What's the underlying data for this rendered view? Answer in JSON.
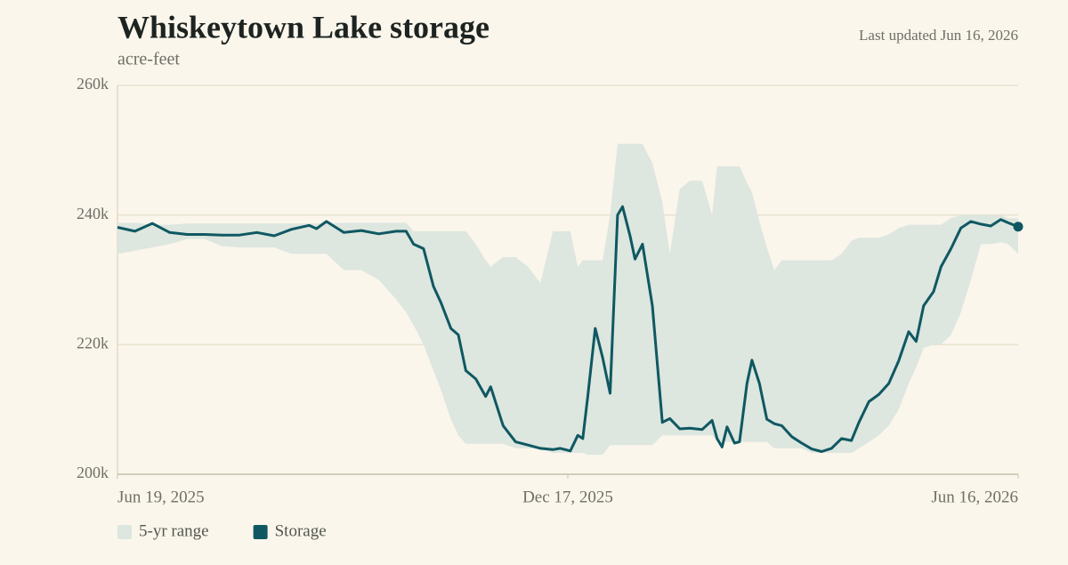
{
  "chart_data": {
    "type": "line",
    "title": "Whiskeytown Lake storage",
    "subtitle": "acre-feet",
    "updated": "Last updated Jun 16, 2026",
    "x": [
      "2025-06-19",
      "2025-06-26",
      "2025-07-03",
      "2025-07-10",
      "2025-07-17",
      "2025-07-24",
      "2025-07-31",
      "2025-08-07",
      "2025-08-14",
      "2025-08-21",
      "2025-08-28",
      "2025-09-04",
      "2025-09-07",
      "2025-09-11",
      "2025-09-18",
      "2025-09-25",
      "2025-10-02",
      "2025-10-09",
      "2025-10-13",
      "2025-10-16",
      "2025-10-20",
      "2025-10-24",
      "2025-10-27",
      "2025-10-31",
      "2025-11-03",
      "2025-11-06",
      "2025-11-10",
      "2025-11-14",
      "2025-11-16",
      "2025-11-21",
      "2025-11-26",
      "2025-12-01",
      "2025-12-06",
      "2025-12-11",
      "2025-12-14",
      "2025-12-18",
      "2025-12-21",
      "2025-12-23",
      "2025-12-25",
      "2025-12-28",
      "2025-12-31",
      "2026-01-03",
      "2026-01-06",
      "2026-01-08",
      "2026-01-11",
      "2026-01-13",
      "2026-01-16",
      "2026-01-20",
      "2026-01-24",
      "2026-01-27",
      "2026-01-31",
      "2026-02-04",
      "2026-02-09",
      "2026-02-13",
      "2026-02-15",
      "2026-02-17",
      "2026-02-19",
      "2026-02-22",
      "2026-02-24",
      "2026-02-27",
      "2026-03-01",
      "2026-03-04",
      "2026-03-07",
      "2026-03-10",
      "2026-03-13",
      "2026-03-17",
      "2026-03-21",
      "2026-03-25",
      "2026-03-29",
      "2026-04-02",
      "2026-04-06",
      "2026-04-10",
      "2026-04-13",
      "2026-04-17",
      "2026-04-21",
      "2026-04-25",
      "2026-04-29",
      "2026-05-03",
      "2026-05-06",
      "2026-05-09",
      "2026-05-13",
      "2026-05-16",
      "2026-05-20",
      "2026-05-24",
      "2026-05-28",
      "2026-06-01",
      "2026-06-05",
      "2026-06-09",
      "2026-06-12",
      "2026-06-16"
    ],
    "xlim": [
      "2025-06-19",
      "2026-06-16"
    ],
    "xticks": [
      {
        "value": "2025-06-19",
        "label": "Jun 19, 2025"
      },
      {
        "value": "2025-12-17",
        "label": "Dec 17, 2025"
      },
      {
        "value": "2026-06-16",
        "label": "Jun 16, 2026"
      }
    ],
    "ylim": [
      200000,
      260000
    ],
    "yticks": [
      {
        "value": 200000,
        "label": "200k"
      },
      {
        "value": 220000,
        "label": "220k"
      },
      {
        "value": 240000,
        "label": "240k"
      },
      {
        "value": 260000,
        "label": "260k"
      }
    ],
    "grid": true,
    "series": [
      {
        "name": "5-yr range",
        "type": "band",
        "color": "#dde6df",
        "lower": [
          234000,
          234500,
          235000,
          235500,
          236300,
          236300,
          235200,
          235000,
          235000,
          235000,
          234000,
          234000,
          234000,
          234000,
          231500,
          231500,
          230000,
          227000,
          225000,
          223000,
          220000,
          216000,
          213000,
          208500,
          206000,
          204700,
          204700,
          204700,
          204700,
          204700,
          204000,
          204000,
          204000,
          203300,
          203300,
          203300,
          203300,
          203300,
          203000,
          203000,
          203000,
          204500,
          204500,
          204500,
          204500,
          204500,
          204500,
          204500,
          206000,
          206000,
          206000,
          206000,
          206000,
          206000,
          205000,
          205000,
          205000,
          205000,
          205000,
          205000,
          205000,
          205000,
          205000,
          204000,
          204000,
          204000,
          204000,
          203300,
          203300,
          203300,
          203300,
          203300,
          204000,
          205000,
          206000,
          207500,
          210000,
          214000,
          216500,
          219500,
          220000,
          220000,
          221500,
          225000,
          230000,
          235500,
          235500,
          235800,
          235500,
          234000
        ],
        "upper": [
          238800,
          238800,
          238500,
          238500,
          238700,
          238700,
          238700,
          238700,
          238700,
          238700,
          238700,
          238700,
          238700,
          238700,
          238800,
          238800,
          238800,
          238800,
          238800,
          237500,
          237500,
          237500,
          237500,
          237500,
          237500,
          237500,
          235500,
          233000,
          232000,
          233500,
          233500,
          232000,
          229500,
          237500,
          237500,
          237500,
          232000,
          233000,
          233000,
          233000,
          233000,
          240000,
          251000,
          251000,
          251000,
          251000,
          251000,
          248000,
          242000,
          234000,
          244000,
          245300,
          245300,
          240000,
          247500,
          247500,
          247500,
          247500,
          247500,
          245000,
          243500,
          239000,
          235000,
          231500,
          233000,
          233000,
          233000,
          233000,
          233000,
          233000,
          234000,
          236000,
          236500,
          236500,
          236500,
          237000,
          238000,
          238500,
          238500,
          238500,
          238500,
          238500,
          239500,
          240000,
          240000,
          240000,
          240000,
          240000,
          239500,
          239500
        ]
      },
      {
        "name": "Storage",
        "type": "line",
        "color": "#0f5862",
        "values": [
          238100,
          237500,
          238700,
          237300,
          237000,
          237000,
          236900,
          236900,
          237300,
          236800,
          237800,
          238400,
          237900,
          239000,
          237300,
          237600,
          237100,
          237500,
          237500,
          235500,
          234800,
          229000,
          226500,
          222500,
          221500,
          216000,
          214700,
          212000,
          213500,
          207500,
          205000,
          204500,
          204000,
          203800,
          204000,
          203600,
          206000,
          205500,
          212000,
          222500,
          218000,
          212500,
          240000,
          241300,
          236800,
          233200,
          235500,
          226000,
          208000,
          208600,
          207000,
          207100,
          206900,
          208300,
          205500,
          204200,
          207300,
          204800,
          205000,
          214000,
          217600,
          214000,
          208500,
          207800,
          207500,
          205800,
          204800,
          203900,
          203500,
          204000,
          205500,
          205200,
          208000,
          211200,
          212300,
          214000,
          217500,
          222000,
          220500,
          226000,
          228200,
          232000,
          234800,
          238000,
          239000,
          238600,
          238300,
          239300,
          238800,
          238200
        ]
      }
    ]
  }
}
